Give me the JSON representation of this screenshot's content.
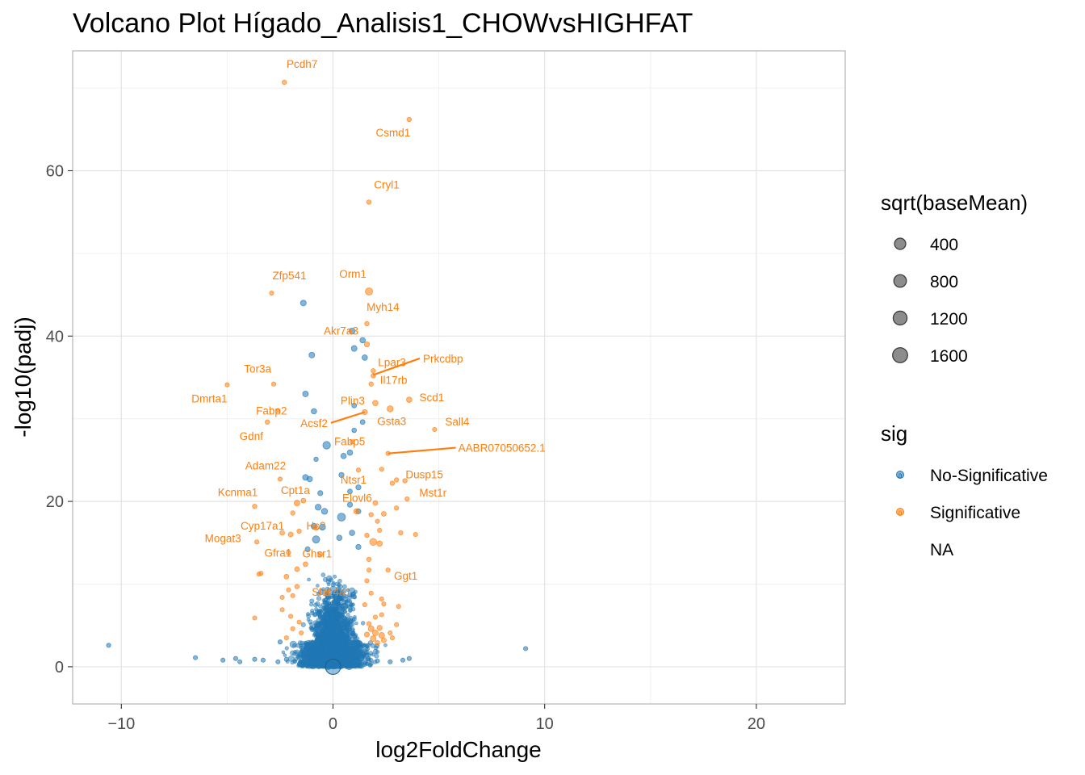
{
  "chart_data": {
    "type": "scatter",
    "title": "Volcano Plot Hígado_Analisis1_CHOWvsHIGHFAT",
    "xlabel": "log2FoldChange",
    "ylabel": "-log10(padj)",
    "xlim": [
      -12.3,
      24.2
    ],
    "ylim": [
      -4.5,
      74.5
    ],
    "x_ticks": [
      -10,
      0,
      10,
      20
    ],
    "y_ticks": [
      0,
      20,
      40,
      60
    ],
    "grid": true,
    "legend_position": "right",
    "colors": {
      "no_sig": "#1f77b4",
      "sig": "#ff7f0e",
      "size_key": "#7f7f7f"
    },
    "size_legend": {
      "title": "sqrt(baseMean)",
      "values": [
        "400",
        "800",
        "1200",
        "1600"
      ]
    },
    "color_legend": {
      "title": "sig",
      "entries": [
        "No-Significative",
        "Significative",
        "NA"
      ],
      "key_glyph": "a"
    },
    "labeled_points": [
      {
        "gene": "Pcdh7",
        "x": -2.3,
        "y": 70.7,
        "size": 120
      },
      {
        "gene": "Csmd1",
        "x": 3.6,
        "y": 66.2,
        "size": 120
      },
      {
        "gene": "Cryl1",
        "x": 1.7,
        "y": 56.2,
        "size": 120
      },
      {
        "gene": "Zfp541",
        "x": -2.9,
        "y": 45.2,
        "size": 110
      },
      {
        "gene": "Orm1",
        "x": 1.7,
        "y": 45.4,
        "size": 320
      },
      {
        "gene": "Myh14",
        "x": 1.6,
        "y": 41.5,
        "size": 120
      },
      {
        "gene": "Akr7a3",
        "x": 1.6,
        "y": 39.0,
        "size": 160
      },
      {
        "gene": "Lpar3",
        "x": 1.9,
        "y": 35.2,
        "size": 120
      },
      {
        "gene": "Prkcdbp",
        "x": 1.9,
        "y": 35.8,
        "size": 120
      },
      {
        "gene": "Tor3a",
        "x": -2.8,
        "y": 34.2,
        "size": 110
      },
      {
        "gene": "Il17rb",
        "x": 1.8,
        "y": 34.2,
        "size": 120
      },
      {
        "gene": "Dmrta1",
        "x": -5.0,
        "y": 34.1,
        "size": 110
      },
      {
        "gene": "Fabp2",
        "x": -2.6,
        "y": 31.0,
        "size": 100
      },
      {
        "gene": "Plin3",
        "x": 2.0,
        "y": 31.9,
        "size": 180
      },
      {
        "gene": "Scd1",
        "x": 3.6,
        "y": 32.3,
        "size": 180
      },
      {
        "gene": "Acsf2",
        "x": 1.5,
        "y": 30.8,
        "size": 160
      },
      {
        "gene": "Gsta3",
        "x": 2.7,
        "y": 31.2,
        "size": 220
      },
      {
        "gene": "Sall4",
        "x": 4.8,
        "y": 28.7,
        "size": 110
      },
      {
        "gene": "Gdnf",
        "x": -3.1,
        "y": 29.6,
        "size": 120
      },
      {
        "gene": "Fabp5",
        "x": 0.9,
        "y": 27.2,
        "size": 120
      },
      {
        "gene": "AABR07050652.1",
        "x": 2.6,
        "y": 25.8,
        "size": 110
      },
      {
        "gene": "Adam22",
        "x": -2.5,
        "y": 22.7,
        "size": 110
      },
      {
        "gene": "Ntsr1",
        "x": 1.2,
        "y": 23.8,
        "size": 110
      },
      {
        "gene": "Dusp15",
        "x": 3.4,
        "y": 22.5,
        "size": 120
      },
      {
        "gene": "Kcnma1",
        "x": -3.7,
        "y": 19.4,
        "size": 120
      },
      {
        "gene": "Cpt1a",
        "x": -1.7,
        "y": 19.8,
        "size": 200
      },
      {
        "gene": "Elovl6",
        "x": 1.1,
        "y": 18.8,
        "size": 160
      },
      {
        "gene": "Mst1r",
        "x": 3.5,
        "y": 20.3,
        "size": 110
      },
      {
        "gene": "Cyp17a1",
        "x": -2.0,
        "y": 16.0,
        "size": 150
      },
      {
        "gene": "Hc2",
        "x": -0.8,
        "y": 16.8,
        "size": 150
      },
      {
        "gene": "Mogat3",
        "x": -3.6,
        "y": 15.1,
        "size": 110
      },
      {
        "gene": "Gfra1",
        "x": -2.1,
        "y": 13.8,
        "size": 120
      },
      {
        "gene": "Ghsr1",
        "x": -0.6,
        "y": 13.6,
        "size": 150
      },
      {
        "gene": "Ggt1",
        "x": 2.6,
        "y": 11.7,
        "size": 110
      },
      {
        "gene": "Slc14a1",
        "x": -0.3,
        "y": 8.9,
        "size": 150
      }
    ],
    "other_significant_points": [
      {
        "x": 1.9,
        "y": 15.1,
        "size": 300
      },
      {
        "x": 2.2,
        "y": 14.9,
        "size": 180
      },
      {
        "x": 3.2,
        "y": 16.2,
        "size": 120
      },
      {
        "x": 3.9,
        "y": 16.0,
        "size": 110
      },
      {
        "x": 3.0,
        "y": 19.2,
        "size": 120
      },
      {
        "x": 3.0,
        "y": 22.6,
        "size": 120
      },
      {
        "x": 2.8,
        "y": 22.2,
        "size": 120
      },
      {
        "x": 2.3,
        "y": 23.9,
        "size": 110
      },
      {
        "x": 2.0,
        "y": 19.8,
        "size": 140
      },
      {
        "x": 2.4,
        "y": 18.5,
        "size": 140
      },
      {
        "x": 2.1,
        "y": 17.6,
        "size": 110
      },
      {
        "x": 2.2,
        "y": 16.5,
        "size": 110
      },
      {
        "x": 1.8,
        "y": 18.4,
        "size": 120
      },
      {
        "x": 1.6,
        "y": 15.9,
        "size": 120
      },
      {
        "x": -1.4,
        "y": 20.1,
        "size": 140
      },
      {
        "x": -1.9,
        "y": 18.6,
        "size": 120
      },
      {
        "x": -2.4,
        "y": 16.2,
        "size": 140
      },
      {
        "x": -1.6,
        "y": 16.4,
        "size": 120
      },
      {
        "x": -3.4,
        "y": 11.3,
        "size": 110
      },
      {
        "x": -3.5,
        "y": 11.2,
        "size": 110
      },
      {
        "x": -2.2,
        "y": 10.9,
        "size": 140
      },
      {
        "x": -1.7,
        "y": 11.8,
        "size": 140
      },
      {
        "x": -1.3,
        "y": 12.4,
        "size": 140
      },
      {
        "x": -2.1,
        "y": 9.3,
        "size": 110
      },
      {
        "x": -2.4,
        "y": 8.4,
        "size": 110
      },
      {
        "x": -1.9,
        "y": 8.6,
        "size": 110
      },
      {
        "x": -1.7,
        "y": 9.7,
        "size": 120
      },
      {
        "x": -3.7,
        "y": 5.9,
        "size": 110
      },
      {
        "x": -2.4,
        "y": 6.9,
        "size": 110
      },
      {
        "x": -2.0,
        "y": 6.1,
        "size": 110
      },
      {
        "x": -1.9,
        "y": 4.6,
        "size": 110
      },
      {
        "x": -2.2,
        "y": 3.5,
        "size": 110
      },
      {
        "x": 1.7,
        "y": 11.7,
        "size": 110
      },
      {
        "x": 1.6,
        "y": 10.4,
        "size": 110
      },
      {
        "x": 1.8,
        "y": 8.9,
        "size": 110
      },
      {
        "x": 2.3,
        "y": 8.2,
        "size": 110
      },
      {
        "x": 2.4,
        "y": 7.6,
        "size": 110
      },
      {
        "x": 3.1,
        "y": 7.3,
        "size": 110
      },
      {
        "x": 2.3,
        "y": 6.3,
        "size": 110
      },
      {
        "x": 2.0,
        "y": 6.0,
        "size": 110
      },
      {
        "x": 3.0,
        "y": 5.1,
        "size": 110
      },
      {
        "x": 2.8,
        "y": 3.5,
        "size": 110
      },
      {
        "x": 2.7,
        "y": 4.1,
        "size": 110
      },
      {
        "x": 1.8,
        "y": 4.6,
        "size": 200
      },
      {
        "x": 2.0,
        "y": 4.1,
        "size": 200
      },
      {
        "x": 2.3,
        "y": 3.8,
        "size": 200
      },
      {
        "x": 1.9,
        "y": 3.4,
        "size": 200
      },
      {
        "x": 2.2,
        "y": 4.7,
        "size": 160
      },
      {
        "x": 1.6,
        "y": 3.9,
        "size": 150
      },
      {
        "x": 2.4,
        "y": 3.2,
        "size": 140
      },
      {
        "x": 2.1,
        "y": 2.9,
        "size": 130
      },
      {
        "x": 1.7,
        "y": 5.2,
        "size": 120
      },
      {
        "x": -1.6,
        "y": 5.4,
        "size": 110
      },
      {
        "x": -1.5,
        "y": 4.1,
        "size": 110
      },
      {
        "x": 1.5,
        "y": 7.5,
        "size": 110
      },
      {
        "x": 1.7,
        "y": 13.0,
        "size": 120
      }
    ],
    "non_significant_points": [
      {
        "x": -10.6,
        "y": 2.6,
        "size": 110
      },
      {
        "x": -6.5,
        "y": 1.1,
        "size": 110
      },
      {
        "x": 9.1,
        "y": 2.2,
        "size": 110
      },
      {
        "x": -5.2,
        "y": 0.8,
        "size": 110
      },
      {
        "x": -4.6,
        "y": 1.0,
        "size": 110
      },
      {
        "x": -4.4,
        "y": 0.6,
        "size": 110
      },
      {
        "x": -3.7,
        "y": 0.9,
        "size": 110
      },
      {
        "x": -3.3,
        "y": 0.8,
        "size": 110
      },
      {
        "x": -2.6,
        "y": 0.6,
        "size": 110
      },
      {
        "x": -2.2,
        "y": 0.9,
        "size": 110
      },
      {
        "x": 3.6,
        "y": 1.0,
        "size": 110
      },
      {
        "x": 3.3,
        "y": 0.8,
        "size": 110
      },
      {
        "x": 2.7,
        "y": 0.6,
        "size": 110
      },
      {
        "x": 2.1,
        "y": 0.7,
        "size": 110
      },
      {
        "x": -2.5,
        "y": 3.0,
        "size": 110
      },
      {
        "x": -1.4,
        "y": 44.0,
        "size": 200
      },
      {
        "x": 0.9,
        "y": 40.6,
        "size": 220
      },
      {
        "x": 1.4,
        "y": 39.5,
        "size": 180
      },
      {
        "x": 1.0,
        "y": 38.5,
        "size": 200
      },
      {
        "x": -1.0,
        "y": 37.7,
        "size": 200
      },
      {
        "x": 1.5,
        "y": 37.4,
        "size": 180
      },
      {
        "x": -1.3,
        "y": 33.0,
        "size": 200
      },
      {
        "x": -0.9,
        "y": 30.9,
        "size": 180
      },
      {
        "x": 1.0,
        "y": 31.6,
        "size": 140
      },
      {
        "x": 1.4,
        "y": 29.6,
        "size": 140
      },
      {
        "x": 1.0,
        "y": 28.6,
        "size": 130
      },
      {
        "x": -0.3,
        "y": 26.8,
        "size": 350
      },
      {
        "x": 0.8,
        "y": 25.9,
        "size": 180
      },
      {
        "x": 0.5,
        "y": 25.5,
        "size": 180
      },
      {
        "x": -0.8,
        "y": 25.1,
        "size": 120
      },
      {
        "x": -1.3,
        "y": 22.9,
        "size": 200
      },
      {
        "x": -1.1,
        "y": 22.7,
        "size": 180
      },
      {
        "x": 0.4,
        "y": 23.2,
        "size": 160
      },
      {
        "x": 1.2,
        "y": 21.7,
        "size": 160
      },
      {
        "x": 0.8,
        "y": 21.2,
        "size": 140
      },
      {
        "x": -0.6,
        "y": 21.0,
        "size": 160
      },
      {
        "x": -0.7,
        "y": 19.3,
        "size": 220
      },
      {
        "x": -0.4,
        "y": 18.8,
        "size": 220
      },
      {
        "x": 0.4,
        "y": 18.1,
        "size": 380
      },
      {
        "x": 0.8,
        "y": 19.6,
        "size": 160
      },
      {
        "x": 1.2,
        "y": 18.8,
        "size": 150
      },
      {
        "x": -0.9,
        "y": 17.0,
        "size": 200
      },
      {
        "x": -0.5,
        "y": 16.9,
        "size": 230
      },
      {
        "x": 0.9,
        "y": 16.2,
        "size": 180
      },
      {
        "x": -0.8,
        "y": 15.4,
        "size": 320
      },
      {
        "x": 0.3,
        "y": 15.6,
        "size": 180
      },
      {
        "x": -1.2,
        "y": 14.2,
        "size": 160
      },
      {
        "x": 1.2,
        "y": 14.5,
        "size": 160
      }
    ],
    "cloud_points_note": "The dense central cloud of No-Significative points is generated procedurally by the script."
  }
}
